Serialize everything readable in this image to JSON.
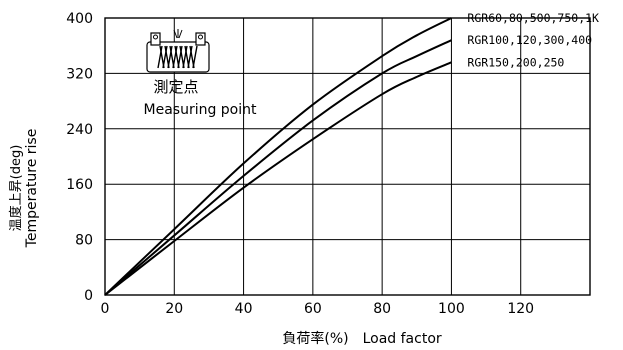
{
  "chart_data": {
    "type": "line",
    "xlabel": "負荷率(%)　Load factor",
    "ylabel_jp": "温度上昇(deg)",
    "ylabel_en": "Temperature rise",
    "xlim": [
      0,
      140
    ],
    "ylim": [
      0,
      400
    ],
    "x_ticks": [
      0,
      20,
      40,
      60,
      80,
      100,
      120
    ],
    "y_ticks": [
      0,
      80,
      160,
      240,
      320,
      400
    ],
    "grid": true,
    "series": [
      {
        "name": "RGR60,80,500,750,1K",
        "x": [
          0,
          20,
          40,
          60,
          80,
          90,
          100
        ],
        "y": [
          0,
          95,
          190,
          275,
          345,
          375,
          400
        ]
      },
      {
        "name": "RGR100,120,300,400",
        "x": [
          0,
          20,
          40,
          60,
          80,
          90,
          100
        ],
        "y": [
          0,
          86,
          172,
          252,
          320,
          345,
          368
        ]
      },
      {
        "name": "RGR150,200,250",
        "x": [
          0,
          20,
          40,
          60,
          80,
          90,
          100
        ],
        "y": [
          0,
          78,
          155,
          225,
          290,
          315,
          336
        ]
      }
    ],
    "annotation": {
      "jp": "測定点",
      "en": "Measuring point"
    }
  }
}
